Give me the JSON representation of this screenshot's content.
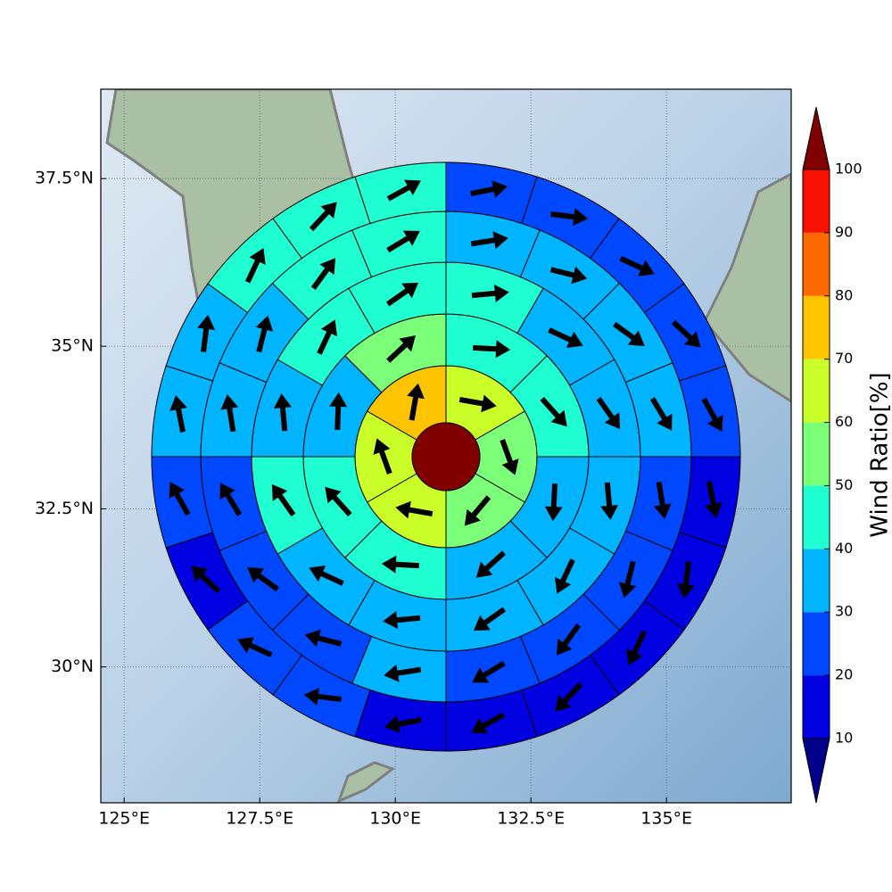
{
  "chart_data": {
    "type": "polar_sector_map",
    "xlim": [
      124.57,
      137.3
    ],
    "ylim": [
      27.8,
      38.8
    ],
    "xticks": [
      {
        "value": 125,
        "label": "125°E"
      },
      {
        "value": 127.5,
        "label": "127.5°E"
      },
      {
        "value": 130,
        "label": "130°E"
      },
      {
        "value": 132.5,
        "label": "132.5°E"
      },
      {
        "value": 135,
        "label": "135°E"
      }
    ],
    "yticks": [
      {
        "value": 30,
        "label": "30°N"
      },
      {
        "value": 32.5,
        "label": "32.5°N"
      },
      {
        "value": 35,
        "label": "35°N"
      },
      {
        "value": 37.5,
        "label": "37.5°N"
      }
    ],
    "grid": true,
    "colorbar": {
      "label": "Wind Ratio[%]",
      "ticks": [
        10,
        20,
        30,
        40,
        50,
        60,
        70,
        80,
        90,
        100
      ],
      "colors": [
        "#0000e0",
        "#0048ff",
        "#00b4ff",
        "#20ffd2",
        "#7cff79",
        "#caff2a",
        "#ffc400",
        "#ff6a00",
        "#f81000"
      ],
      "under_color": "#00008b",
      "over_color": "#800000"
    },
    "center_value": 105,
    "rings": [
      {
        "values": [
          65,
          55,
          55,
          65,
          62,
          75
        ],
        "directions": [
          -10,
          -70,
          -130,
          170,
          110,
          80
        ]
      },
      {
        "values": [
          45,
          45,
          35,
          35,
          42,
          42,
          35,
          55
        ],
        "directions": [
          -3,
          -48,
          -93,
          -138,
          177,
          132,
          88,
          43
        ]
      },
      {
        "values": [
          45,
          35,
          35,
          35,
          35,
          35,
          35,
          35,
          42,
          35,
          45,
          45
        ],
        "directions": [
          5,
          -25,
          -55,
          -85,
          -115,
          -145,
          -175,
          155,
          125,
          95,
          65,
          35
        ]
      },
      {
        "values": [
          35,
          35,
          35,
          35,
          25,
          25,
          25,
          25,
          35,
          25,
          25,
          25,
          35,
          35,
          45,
          45
        ],
        "directions": [
          9,
          -14,
          -36,
          -59,
          -81,
          -104,
          -126,
          -149,
          -171,
          166,
          144,
          121,
          99,
          76,
          54,
          31
        ]
      },
      {
        "values": [
          25,
          25,
          25,
          25,
          25,
          15,
          15,
          15,
          15,
          15,
          15,
          25,
          25,
          15,
          25,
          35,
          35,
          45,
          45,
          45
        ],
        "directions": [
          11,
          -7,
          -25,
          -43,
          -61,
          -79,
          -97,
          -115,
          -133,
          -151,
          -169,
          173,
          155,
          137,
          119,
          101,
          83,
          65,
          47,
          29
        ]
      }
    ]
  }
}
